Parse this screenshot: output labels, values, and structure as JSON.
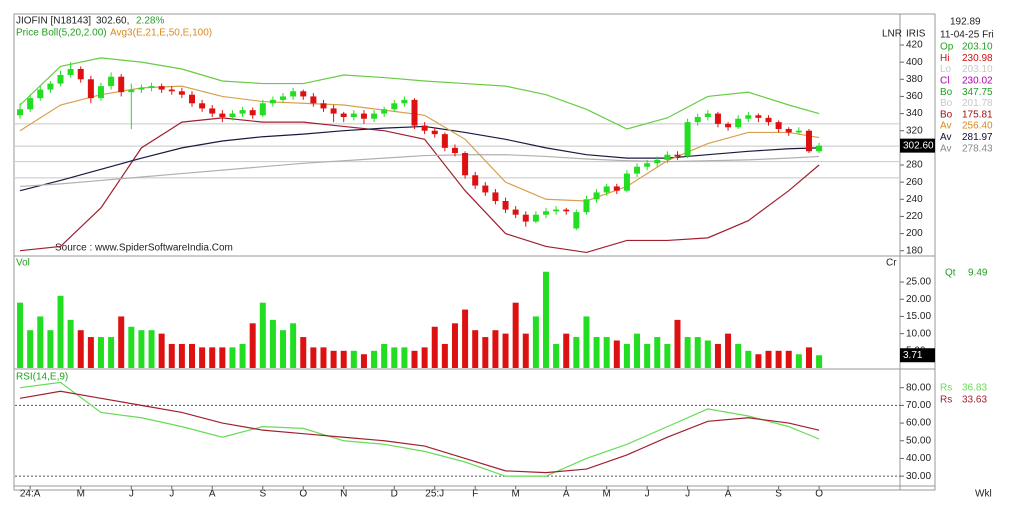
{
  "header": {
    "symbol": "JIOFIN [N18143]",
    "price_text": "302.60,",
    "change_text": "2.28%",
    "legend_boll": "Price Boll(5,20,2.00)",
    "legend_avg": "Avg3(E,21,E,50,E,100)",
    "source": "Source : www.SpiderSoftwareIndia.Com",
    "lnr": "LNR",
    "iris": "IRIS",
    "wkl": "Wkl"
  },
  "info": {
    "top": "192.89",
    "date": "11-04-25 Fri",
    "rows": [
      {
        "label": "Op",
        "value": "203.10",
        "color": "#22a022"
      },
      {
        "label": "Hi",
        "value": "230.98",
        "color": "#cc1111"
      },
      {
        "label": "Lo",
        "value": "203.10",
        "color": "#c8c8c8"
      },
      {
        "label": "Cl",
        "value": "230.02",
        "color": "#b000b0"
      },
      {
        "label": "Bo",
        "value": "347.75",
        "color": "#22a022"
      },
      {
        "label": "Bo",
        "value": "201.78",
        "color": "#c8c8c8"
      },
      {
        "label": "Bo",
        "value": "175.81",
        "color": "#a01010"
      },
      {
        "label": "Av",
        "value": "256.40",
        "color": "#d88a20"
      },
      {
        "label": "Av",
        "value": "281.97",
        "color": "#111133"
      },
      {
        "label": "Av",
        "value": "278.43",
        "color": "#888888"
      }
    ]
  },
  "chart_data": [
    {
      "type": "candlestick",
      "up_color": "#22dd22",
      "down_color": "#dd1111",
      "x": [
        0,
        1,
        2,
        3,
        4,
        5,
        6,
        7,
        8,
        9,
        10,
        11,
        12,
        13,
        14,
        15,
        16,
        17,
        18,
        19,
        20,
        21,
        22,
        23,
        24,
        25,
        26,
        27,
        28,
        29,
        30,
        31,
        32,
        33,
        34,
        35,
        36,
        37,
        38,
        39,
        40,
        41,
        42,
        43,
        44,
        45,
        46,
        47,
        48,
        49,
        50,
        51,
        52,
        53,
        54,
        55,
        56,
        57,
        58,
        59,
        60,
        61,
        62,
        63,
        64,
        65,
        66,
        67,
        68,
        69,
        70,
        71,
        72,
        73,
        74,
        75,
        76,
        77,
        78,
        79
      ],
      "open": [
        338,
        345,
        358,
        368,
        375,
        385,
        392,
        380,
        358,
        372,
        383,
        365,
        368,
        370,
        372,
        368,
        366,
        362,
        352,
        346,
        340,
        336,
        340,
        344,
        338,
        352,
        356,
        360,
        366,
        360,
        352,
        346,
        340,
        336,
        340,
        334,
        340,
        345,
        352,
        356,
        326,
        320,
        316,
        300,
        294,
        268,
        256,
        248,
        238,
        228,
        222,
        214,
        222,
        226,
        228,
        206,
        225,
        240,
        248,
        255,
        250,
        270,
        278,
        282,
        286,
        292,
        290,
        330,
        336,
        340,
        328,
        324,
        334,
        338,
        335,
        330,
        322,
        318,
        320,
        296
      ],
      "high": [
        352,
        362,
        372,
        378,
        390,
        400,
        395,
        384,
        376,
        388,
        386,
        375,
        374,
        376,
        375,
        372,
        370,
        366,
        356,
        350,
        344,
        344,
        348,
        347,
        356,
        360,
        364,
        370,
        368,
        364,
        356,
        350,
        342,
        344,
        344,
        344,
        348,
        356,
        360,
        358,
        330,
        324,
        318,
        304,
        296,
        272,
        260,
        252,
        242,
        232,
        226,
        226,
        230,
        232,
        230,
        228,
        244,
        252,
        258,
        258,
        274,
        282,
        286,
        290,
        296,
        296,
        334,
        340,
        344,
        342,
        330,
        338,
        342,
        340,
        338,
        332,
        324,
        324,
        322,
        306
      ],
      "low": [
        334,
        342,
        355,
        364,
        372,
        382,
        376,
        352,
        355,
        368,
        360,
        322,
        364,
        366,
        364,
        362,
        358,
        348,
        342,
        336,
        330,
        332,
        336,
        334,
        336,
        348,
        352,
        356,
        356,
        348,
        342,
        330,
        330,
        332,
        328,
        330,
        336,
        342,
        348,
        322,
        316,
        312,
        296,
        290,
        264,
        252,
        244,
        234,
        224,
        218,
        208,
        212,
        218,
        222,
        222,
        204,
        222,
        236,
        244,
        246,
        248,
        266,
        274,
        278,
        282,
        286,
        288,
        326,
        332,
        324,
        320,
        322,
        330,
        330,
        326,
        318,
        314,
        316,
        294,
        294
      ],
      "close": [
        345,
        358,
        368,
        375,
        385,
        392,
        380,
        358,
        372,
        383,
        365,
        368,
        370,
        372,
        368,
        366,
        362,
        352,
        346,
        340,
        336,
        340,
        344,
        338,
        352,
        356,
        360,
        366,
        360,
        352,
        346,
        340,
        336,
        340,
        334,
        340,
        345,
        352,
        356,
        326,
        320,
        316,
        300,
        294,
        268,
        256,
        248,
        238,
        228,
        222,
        214,
        222,
        226,
        228,
        226,
        225,
        240,
        248,
        255,
        250,
        270,
        278,
        282,
        286,
        292,
        290,
        330,
        336,
        340,
        328,
        324,
        334,
        338,
        335,
        330,
        322,
        318,
        320,
        296,
        302.6
      ],
      "last_label": "302.60",
      "overlays": [
        {
          "color": "#66cc44",
          "x": [
            0,
            4,
            8,
            12,
            16,
            20,
            24,
            28,
            32,
            36,
            40,
            44,
            48,
            52,
            56,
            60,
            64,
            68,
            72,
            76,
            79
          ],
          "values": [
            350,
            395,
            405,
            400,
            392,
            378,
            375,
            375,
            385,
            382,
            378,
            375,
            372,
            362,
            345,
            322,
            335,
            360,
            365,
            350,
            340
          ]
        },
        {
          "color": "#a02030",
          "x": [
            0,
            4,
            8,
            12,
            16,
            20,
            24,
            28,
            32,
            36,
            40,
            44,
            48,
            52,
            56,
            60,
            64,
            68,
            72,
            76,
            79
          ],
          "values": [
            180,
            185,
            230,
            300,
            330,
            335,
            330,
            330,
            325,
            320,
            310,
            250,
            200,
            185,
            178,
            192,
            192,
            195,
            215,
            250,
            280
          ]
        },
        {
          "color": "#1a1a40",
          "x": [
            0,
            4,
            8,
            12,
            16,
            20,
            24,
            28,
            32,
            36,
            40,
            44,
            48,
            52,
            56,
            60,
            64,
            68,
            72,
            76,
            79
          ],
          "values": [
            250,
            262,
            275,
            288,
            300,
            308,
            313,
            316,
            320,
            323,
            325,
            318,
            310,
            300,
            292,
            288,
            288,
            292,
            296,
            299,
            300
          ]
        },
        {
          "color": "#b0b0b0",
          "x": [
            0,
            4,
            8,
            12,
            16,
            20,
            24,
            28,
            32,
            36,
            40,
            44,
            48,
            52,
            56,
            60,
            64,
            68,
            72,
            76,
            79
          ],
          "values": [
            255,
            258,
            262,
            266,
            270,
            274,
            278,
            282,
            285,
            288,
            291,
            292,
            292,
            290,
            287,
            285,
            284,
            285,
            286,
            288,
            290
          ]
        },
        {
          "color": "#d8a050",
          "x": [
            0,
            4,
            8,
            12,
            16,
            20,
            24,
            28,
            32,
            36,
            40,
            44,
            48,
            52,
            56,
            60,
            64,
            68,
            72,
            76,
            79
          ],
          "values": [
            320,
            350,
            362,
            370,
            372,
            360,
            354,
            352,
            350,
            344,
            338,
            310,
            260,
            240,
            238,
            255,
            285,
            305,
            318,
            318,
            312
          ]
        }
      ],
      "levels": [
        328,
        302,
        284,
        265
      ],
      "ylim": [
        175,
        455
      ],
      "yticks": [
        180,
        200,
        220,
        240,
        260,
        280,
        300,
        320,
        340,
        360,
        380,
        400,
        420
      ]
    },
    {
      "type": "bar",
      "title": "Vol",
      "unit": "Cr",
      "qt_label": "Qt",
      "qt_value": "9.49",
      "values": [
        19,
        11,
        15,
        11,
        21,
        14,
        11,
        9,
        9,
        9,
        15,
        12,
        11,
        11,
        10,
        7,
        7,
        7,
        6,
        6,
        6,
        6,
        7,
        13,
        19,
        14,
        11,
        13,
        9,
        6,
        6,
        5,
        5,
        5,
        4,
        5,
        7,
        6,
        6,
        5,
        6,
        12,
        7,
        13,
        17,
        11,
        9,
        11,
        10,
        19,
        10,
        15,
        28,
        7,
        10,
        9,
        15,
        9,
        9,
        8,
        7,
        10,
        7,
        9,
        7,
        14,
        9,
        9,
        8,
        7,
        10,
        7,
        5,
        4,
        5,
        5,
        5,
        4,
        6,
        3.71
      ],
      "last_label": "3.71",
      "ylim": [
        0,
        32
      ],
      "yticks": [
        {
          "value": 5,
          "label": "5.00"
        },
        {
          "value": 10,
          "label": "10.00"
        },
        {
          "value": 15,
          "label": "15.00"
        },
        {
          "value": 20,
          "label": "20.00"
        },
        {
          "value": 25,
          "label": "25.00"
        }
      ]
    },
    {
      "type": "line",
      "title": "RSI(14,E,9)",
      "x": [
        0,
        4,
        8,
        12,
        16,
        20,
        24,
        28,
        32,
        36,
        40,
        44,
        48,
        52,
        56,
        60,
        64,
        68,
        72,
        76,
        79
      ],
      "series": [
        {
          "color": "#66dd55",
          "values": [
            80,
            83,
            66,
            63,
            58,
            52,
            58,
            57,
            50,
            48,
            44,
            38,
            30,
            30,
            40,
            48,
            58,
            68,
            64,
            58,
            51
          ],
          "readout_label": "Rs",
          "readout": "36.83"
        },
        {
          "color": "#a02030",
          "values": [
            74,
            78,
            74,
            70,
            66,
            60,
            56,
            54,
            52,
            50,
            47,
            40,
            33,
            32,
            34,
            42,
            52,
            61,
            63,
            60,
            56
          ],
          "readout_label": "Rs",
          "readout": "33.63"
        }
      ],
      "reference_lines": [
        70,
        30
      ],
      "ylim": [
        25,
        90
      ],
      "yticks": [
        {
          "value": 30,
          "label": "30.00"
        },
        {
          "value": 40,
          "label": "40.00"
        },
        {
          "value": 50,
          "label": "50.00"
        },
        {
          "value": 60,
          "label": "60.00"
        },
        {
          "value": 70,
          "label": "70.00"
        },
        {
          "value": 80,
          "label": "80.00"
        }
      ],
      "xlim": [
        -0.5,
        87
      ],
      "xticks": [
        {
          "value": 1,
          "label": "24:A"
        },
        {
          "value": 6,
          "label": "M"
        },
        {
          "value": 11,
          "label": "J"
        },
        {
          "value": 15,
          "label": "J"
        },
        {
          "value": 19,
          "label": "A"
        },
        {
          "value": 24,
          "label": "S"
        },
        {
          "value": 28,
          "label": "O"
        },
        {
          "value": 32,
          "label": "N"
        },
        {
          "value": 37,
          "label": "D"
        },
        {
          "value": 41,
          "label": "25:J"
        },
        {
          "value": 45,
          "label": "F"
        },
        {
          "value": 49,
          "label": "M"
        },
        {
          "value": 54,
          "label": "A"
        },
        {
          "value": 58,
          "label": "M"
        },
        {
          "value": 62,
          "label": "J"
        },
        {
          "value": 66,
          "label": "J"
        },
        {
          "value": 70,
          "label": "A"
        },
        {
          "value": 75,
          "label": "S"
        },
        {
          "value": 79,
          "label": "O"
        }
      ]
    }
  ]
}
